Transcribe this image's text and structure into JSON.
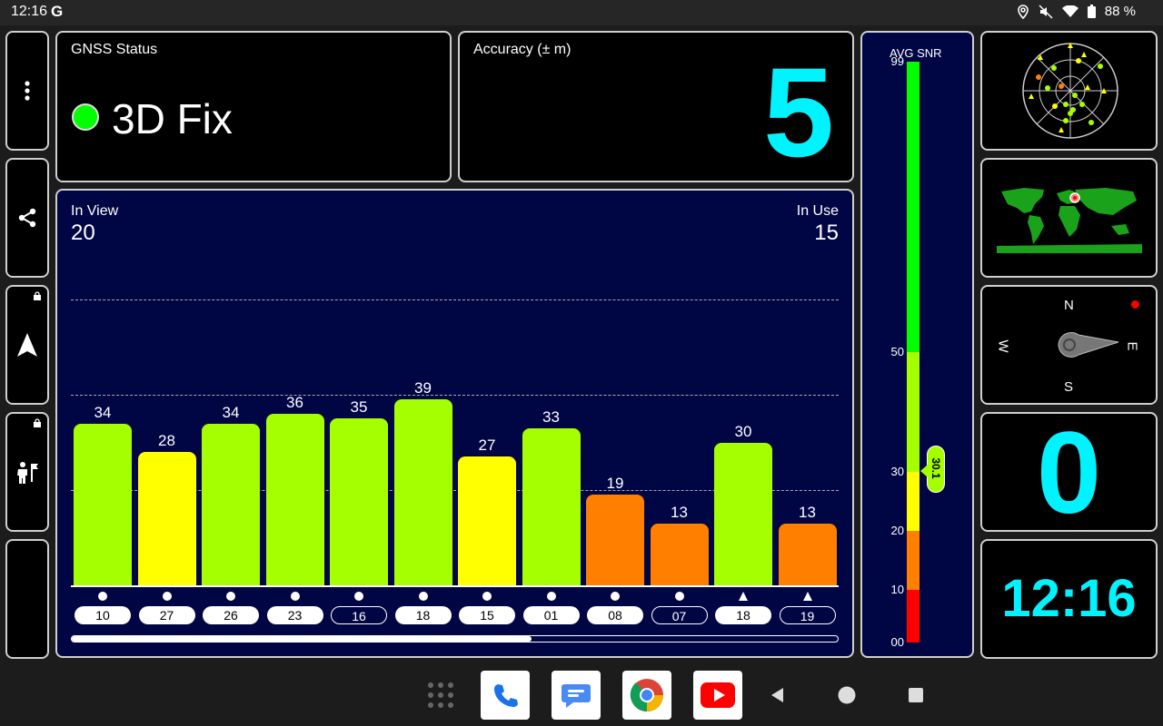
{
  "status_bar": {
    "time": "12:16",
    "g_icon": "G",
    "battery": "88 %",
    "icons": [
      "location-icon",
      "mute-icon",
      "wifi-icon",
      "battery-icon"
    ]
  },
  "sidebar": {
    "buttons": [
      "more-icon",
      "share-icon",
      "navigation-icon",
      "person-flag-icon",
      "moon-icon"
    ]
  },
  "gnss_status": {
    "title": "GNSS Status",
    "value": "3D Fix",
    "indicator_color": "#00ff00"
  },
  "accuracy": {
    "title": "Accuracy (± m)",
    "value": "5"
  },
  "snr_panel": {
    "in_view_label": "In View",
    "in_view_value": "20",
    "in_use_label": "In Use",
    "in_use_value": "15",
    "scroll_fraction": 0.6
  },
  "chart_data": {
    "type": "bar",
    "categories": [
      "10",
      "27",
      "26",
      "23",
      "16",
      "18",
      "15",
      "01",
      "08",
      "07",
      "18",
      "19"
    ],
    "values": [
      34,
      28,
      34,
      36,
      35,
      39,
      27,
      33,
      19,
      13,
      30,
      13
    ],
    "colors": [
      "#a6ff00",
      "#ffff00",
      "#a6ff00",
      "#a6ff00",
      "#a6ff00",
      "#a6ff00",
      "#ffff00",
      "#a6ff00",
      "#ff7f00",
      "#ff7f00",
      "#a6ff00",
      "#ff7f00"
    ],
    "markers": [
      "circle",
      "circle",
      "circle",
      "circle",
      "circle",
      "circle",
      "circle",
      "circle",
      "circle",
      "circle",
      "triangle",
      "triangle"
    ],
    "in_use": [
      true,
      true,
      true,
      true,
      false,
      true,
      true,
      true,
      true,
      false,
      true,
      false
    ],
    "ylim": [
      0,
      60
    ],
    "gridlines": [
      20,
      40,
      60
    ]
  },
  "avg_snr": {
    "title": "AVG SNR",
    "value": "30.1",
    "value_num": 30.1,
    "ticks": [
      "99",
      "50",
      "30",
      "20",
      "10",
      "00"
    ],
    "segments": [
      {
        "from": 0,
        "to": 10,
        "color": "#ff0000"
      },
      {
        "from": 10,
        "to": 20,
        "color": "#ff7f00"
      },
      {
        "from": 20,
        "to": 30,
        "color": "#ffff00"
      },
      {
        "from": 30,
        "to": 50,
        "color": "#a6ff00"
      },
      {
        "from": 50,
        "to": 99,
        "color": "#00ff00"
      }
    ]
  },
  "compass": {
    "north": "N",
    "south": "S",
    "east": "E",
    "west": "W"
  },
  "satellites_in_sky": "0",
  "clock": "12:16",
  "nav_bar": {
    "apps": [
      "apps-grid-icon",
      "phone-icon",
      "messages-icon",
      "chrome-icon",
      "youtube-icon"
    ],
    "buttons": [
      "back-icon",
      "home-icon",
      "recents-icon"
    ]
  }
}
